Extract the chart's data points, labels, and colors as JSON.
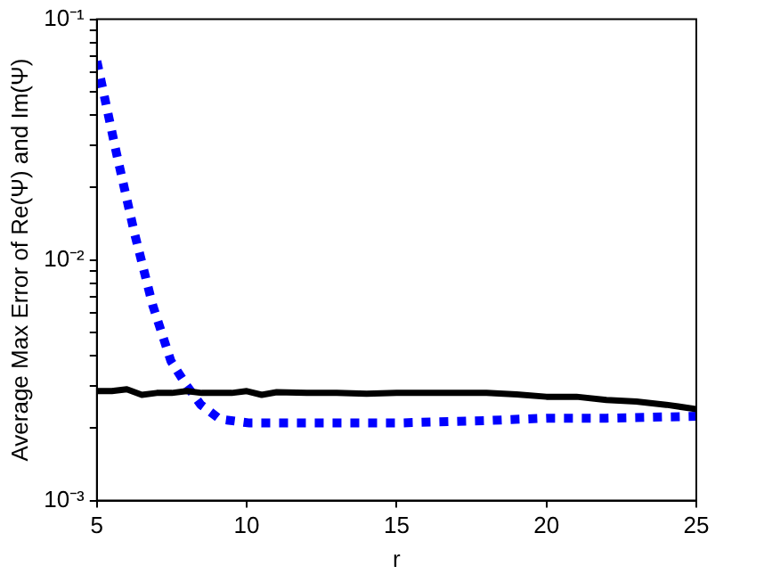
{
  "chart_data": {
    "type": "line",
    "xlabel": "r",
    "ylabel": "Average Max Error of Re(Ψ) and Im(Ψ)",
    "log": "y",
    "grid": false,
    "legend": false,
    "marker": "none",
    "xlim": [
      5,
      25
    ],
    "xticks": [
      5,
      10,
      15,
      20,
      25
    ],
    "ylim": [
      0.001,
      0.1
    ],
    "yticks": [
      {
        "value": 0.001,
        "label": "10⁻³"
      },
      {
        "value": 0.002,
        "label": null
      },
      {
        "value": 0.003,
        "label": null
      },
      {
        "value": 0.004,
        "label": null
      },
      {
        "value": 0.005,
        "label": null
      },
      {
        "value": 0.006,
        "label": null
      },
      {
        "value": 0.007,
        "label": null
      },
      {
        "value": 0.008,
        "label": null
      },
      {
        "value": 0.009,
        "label": null
      },
      {
        "value": 0.01,
        "label": "10⁻²"
      },
      {
        "value": 0.02,
        "label": null
      },
      {
        "value": 0.03,
        "label": null
      },
      {
        "value": 0.04,
        "label": null
      },
      {
        "value": 0.05,
        "label": null
      },
      {
        "value": 0.06,
        "label": null
      },
      {
        "value": 0.07,
        "label": null
      },
      {
        "value": 0.08,
        "label": null
      },
      {
        "value": 0.09,
        "label": null
      },
      {
        "value": 0.1,
        "label": "10⁻¹"
      }
    ],
    "series": [
      {
        "color": "#000000",
        "line_style": "solid",
        "x": [
          5,
          5.5,
          6,
          6.5,
          7,
          7.5,
          8,
          8.5,
          9,
          9.5,
          10,
          10.5,
          11,
          12,
          13,
          14,
          15,
          16,
          17,
          18,
          19,
          20,
          21,
          22,
          23,
          24,
          25
        ],
        "values": [
          0.00285,
          0.00285,
          0.0029,
          0.00275,
          0.0028,
          0.0028,
          0.00285,
          0.0028,
          0.0028,
          0.0028,
          0.00285,
          0.00275,
          0.00282,
          0.0028,
          0.0028,
          0.00278,
          0.0028,
          0.0028,
          0.0028,
          0.0028,
          0.00276,
          0.0027,
          0.0027,
          0.00262,
          0.00258,
          0.0025,
          0.0024
        ]
      },
      {
        "color": "#0000ff",
        "line_style": "dotted",
        "x": [
          5,
          5.65,
          6.25,
          6.86,
          7.47,
          8,
          8.47,
          9.1,
          10.1,
          12,
          15,
          18,
          20,
          22,
          25
        ],
        "values": [
          0.067,
          0.0279,
          0.013,
          0.0065,
          0.0038,
          0.003,
          0.0025,
          0.00218,
          0.0021,
          0.0021,
          0.0021,
          0.00215,
          0.0022,
          0.0022,
          0.00224
        ]
      }
    ]
  }
}
